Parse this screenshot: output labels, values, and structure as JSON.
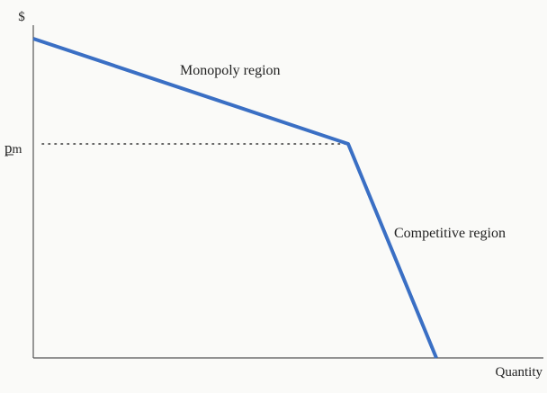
{
  "chart_data": {
    "type": "line",
    "title": "",
    "ylabel": "$",
    "xlabel": "Quantity",
    "grid": false,
    "reference_lines": [
      {
        "axis": "y",
        "label_main": "p",
        "label_sub": "m",
        "style": "dotted"
      }
    ],
    "series": [
      {
        "color": "#3a6fc4"
      }
    ],
    "annotations": [
      {
        "text": "Monopoly region"
      },
      {
        "text": "Competitive region"
      }
    ]
  }
}
